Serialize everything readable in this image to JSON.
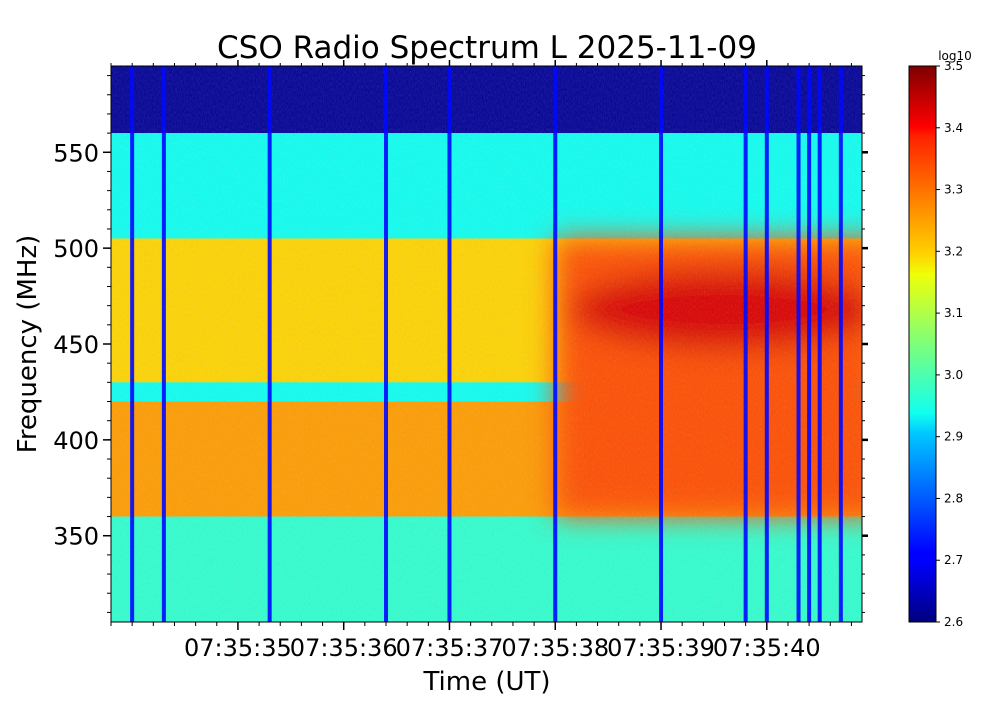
{
  "chart_data": {
    "type": "heatmap",
    "title": "CSO Radio Spectrum L 2025-11-09",
    "xlabel": "Time (UT)",
    "ylabel": "Frequency (MHz)",
    "x_ticks": [
      "07:35:35",
      "07:35:36",
      "07:35:37",
      "07:35:38",
      "07:35:39",
      "07:35:40"
    ],
    "x_range": [
      "07:35:33.8",
      "07:35:40.9"
    ],
    "y_ticks": [
      350,
      400,
      450,
      500,
      550
    ],
    "ylim": [
      305,
      595
    ],
    "colorbar": {
      "label": "log10",
      "ticks": [
        "2.6",
        "2.7",
        "2.8",
        "2.9",
        "3.0",
        "3.1",
        "3.2",
        "3.3",
        "3.4",
        "3.5"
      ],
      "range": [
        2.6,
        3.5
      ],
      "colormap": "jet"
    },
    "frequency_bands": [
      {
        "range": [
          560,
          595
        ],
        "level": 2.62
      },
      {
        "range": [
          505,
          560
        ],
        "level": 2.95
      },
      {
        "range": [
          430,
          505
        ],
        "level": 3.2
      },
      {
        "range": [
          420,
          430
        ],
        "level": 2.95
      },
      {
        "range": [
          360,
          420
        ],
        "level": 3.25
      },
      {
        "range": [
          305,
          360
        ],
        "level": 2.98
      }
    ],
    "enhancement_region": {
      "start": "07:35:38",
      "freq_range": [
        360,
        505
      ],
      "peak_level": 3.42,
      "peak_freq": 468
    },
    "dropout_lines": [
      "07:35:34.0",
      "07:35:34.3",
      "07:35:35.3",
      "07:35:36.4",
      "07:35:37.0",
      "07:35:38.0",
      "07:35:39.0",
      "07:35:39.8",
      "07:35:40.0",
      "07:35:40.3",
      "07:35:40.4",
      "07:35:40.5",
      "07:35:40.7"
    ],
    "grid": false
  }
}
